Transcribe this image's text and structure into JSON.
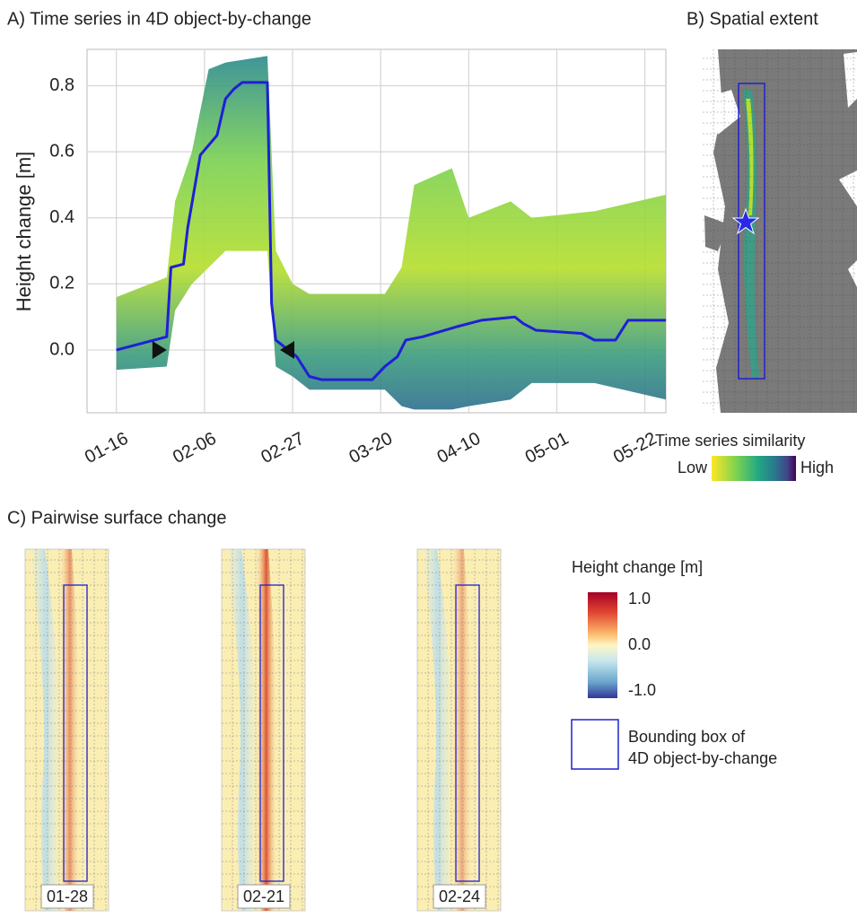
{
  "chart_data": {
    "type": "line",
    "title": "A) Time series in 4D object-by-change",
    "ylabel": "Height change [m]",
    "x": [
      16,
      28,
      29,
      32,
      33,
      36,
      40,
      42,
      44,
      46,
      52,
      53,
      54,
      59,
      62,
      65,
      77,
      80,
      83,
      85,
      89,
      97,
      103,
      111,
      113,
      116,
      127,
      130,
      135,
      138,
      147
    ],
    "series": [
      {
        "color": "#1f1fd6",
        "values": [
          0,
          0.04,
          0.25,
          0.26,
          0.37,
          0.59,
          0.65,
          0.76,
          0.79,
          0.81,
          0.81,
          0.14,
          0.03,
          -0.02,
          -0.08,
          -0.09,
          -0.09,
          -0.05,
          -0.02,
          0.03,
          0.04,
          0.07,
          0.09,
          0.1,
          0.08,
          0.06,
          0.05,
          0.03,
          0.03,
          0.09,
          0.09
        ]
      }
    ],
    "band": {
      "x": [
        16,
        28,
        30,
        34,
        38,
        42,
        52,
        54,
        58,
        62,
        80,
        84,
        87,
        96,
        100,
        110,
        115,
        130,
        147
      ],
      "upper": [
        0.16,
        0.22,
        0.45,
        0.6,
        0.85,
        0.87,
        0.89,
        0.3,
        0.2,
        0.17,
        0.17,
        0.25,
        0.5,
        0.55,
        0.4,
        0.45,
        0.4,
        0.42,
        0.47
      ],
      "lower": [
        -0.06,
        -0.05,
        0.12,
        0.2,
        0.25,
        0.3,
        0.3,
        -0.05,
        -0.08,
        -0.12,
        -0.12,
        -0.17,
        -0.18,
        -0.18,
        -0.17,
        -0.15,
        -0.1,
        -0.1,
        -0.15
      ]
    },
    "markers": {
      "x": [
        28,
        55
      ],
      "values": [
        0,
        0
      ]
    },
    "xlim": [
      9,
      147
    ],
    "ylim": [
      -0.19,
      0.91
    ],
    "xticks": [
      {
        "value": 16,
        "label": "01-16"
      },
      {
        "value": 37,
        "label": "02-06"
      },
      {
        "value": 58,
        "label": "02-27"
      },
      {
        "value": 79,
        "label": "03-20"
      },
      {
        "value": 100,
        "label": "04-10"
      },
      {
        "value": 121,
        "label": "05-01"
      },
      {
        "value": 142,
        "label": "05-22"
      }
    ],
    "yticks": [
      {
        "value": 0,
        "label": "0.0"
      },
      0.2,
      0.4,
      0.6,
      0.8
    ],
    "grid": true
  },
  "panel_b": {
    "title": "B) Spatial extent",
    "colorbar": {
      "label": "Time series similarity",
      "low": "Low",
      "high": "High"
    }
  },
  "panel_c": {
    "title": "C) Pairwise surface change",
    "maps": [
      {
        "label": "01-28"
      },
      {
        "label": "02-21"
      },
      {
        "label": "02-24"
      }
    ],
    "colorbar": {
      "label": "Height change [m]",
      "lim": [
        -1,
        1
      ],
      "ticks": [
        {
          "value": 1,
          "label": "1.0"
        },
        {
          "value": 0,
          "label": "0.0"
        },
        {
          "value": -1,
          "label": "-1.0"
        }
      ]
    },
    "legend": [
      "Bounding box of",
      "4D object-by-change"
    ]
  }
}
